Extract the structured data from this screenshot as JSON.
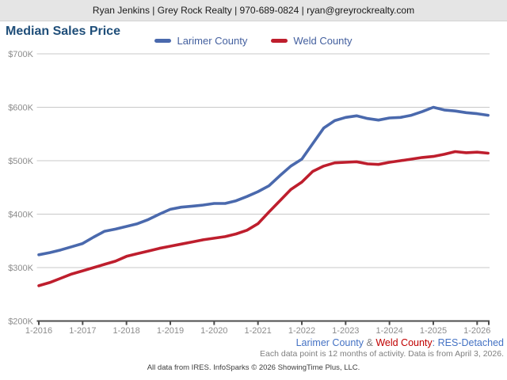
{
  "header": {
    "contact_line": "Ryan Jenkins | Grey Rock Realty | 970-689-0824 | ryan@greyrockrealty.com"
  },
  "title": "Median Sales Price",
  "legend": [
    {
      "label": "Larimer County",
      "color": "#4a69ad"
    },
    {
      "label": "Weld County",
      "color": "#be1e2d"
    }
  ],
  "footer": {
    "series_line": {
      "larimer": "Larimer County",
      "amp": " & ",
      "weld": "Weld County",
      "suffix": ": RES-Detached"
    },
    "note": "Each data point is 12 months of activity. Data is from April 3, 2026.",
    "attribution": "All data from IRES. InfoSparks © 2026 ShowingTime Plus, LLC."
  },
  "chart_data": {
    "type": "line",
    "title": "Median Sales Price",
    "unit": "USD (thousands)",
    "grid": "horizontal",
    "legend_position": "top-center",
    "x_axis": {
      "tick_labels": [
        "1-2016",
        "1-2017",
        "1-2018",
        "1-2019",
        "1-2020",
        "1-2021",
        "1-2022",
        "1-2023",
        "1-2024",
        "1-2025",
        "1-2026"
      ],
      "tick_years": [
        2016,
        2017,
        2018,
        2019,
        2020,
        2021,
        2022,
        2023,
        2024,
        2025,
        2026
      ],
      "range": [
        2016,
        2026.33
      ]
    },
    "y_axis": {
      "tick_labels": [
        "$200K",
        "$300K",
        "$400K",
        "$500K",
        "$600K",
        "$700K"
      ],
      "tick_values": [
        200,
        300,
        400,
        500,
        600,
        700
      ],
      "range": [
        200,
        700
      ]
    },
    "x": [
      2016.0,
      2016.25,
      2016.5,
      2016.75,
      2017.0,
      2017.25,
      2017.5,
      2017.75,
      2018.0,
      2018.25,
      2018.5,
      2018.75,
      2019.0,
      2019.25,
      2019.5,
      2019.75,
      2020.0,
      2020.25,
      2020.5,
      2020.75,
      2021.0,
      2021.25,
      2021.5,
      2021.75,
      2022.0,
      2022.25,
      2022.5,
      2022.75,
      2023.0,
      2023.25,
      2023.5,
      2023.75,
      2024.0,
      2024.25,
      2024.5,
      2024.75,
      2025.0,
      2025.25,
      2025.5,
      2025.75,
      2026.0,
      2026.25
    ],
    "series": [
      {
        "name": "Larimer County",
        "color": "#4a69ad",
        "values": [
          324,
          328,
          333,
          339,
          345,
          357,
          368,
          372,
          377,
          382,
          390,
          400,
          409,
          413,
          415,
          417,
          420,
          420,
          425,
          433,
          442,
          453,
          472,
          490,
          503,
          532,
          561,
          575,
          581,
          584,
          579,
          576,
          580,
          581,
          585,
          592,
          600,
          595,
          593,
          590,
          588,
          585
        ]
      },
      {
        "name": "Weld County",
        "color": "#be1e2d",
        "values": [
          266,
          272,
          280,
          288,
          294,
          300,
          306,
          312,
          321,
          326,
          331,
          336,
          340,
          344,
          348,
          352,
          355,
          358,
          363,
          370,
          382,
          404,
          425,
          446,
          460,
          480,
          490,
          496,
          497,
          498,
          494,
          493,
          497,
          500,
          503,
          506,
          508,
          512,
          517,
          515,
          516,
          514
        ]
      }
    ]
  }
}
